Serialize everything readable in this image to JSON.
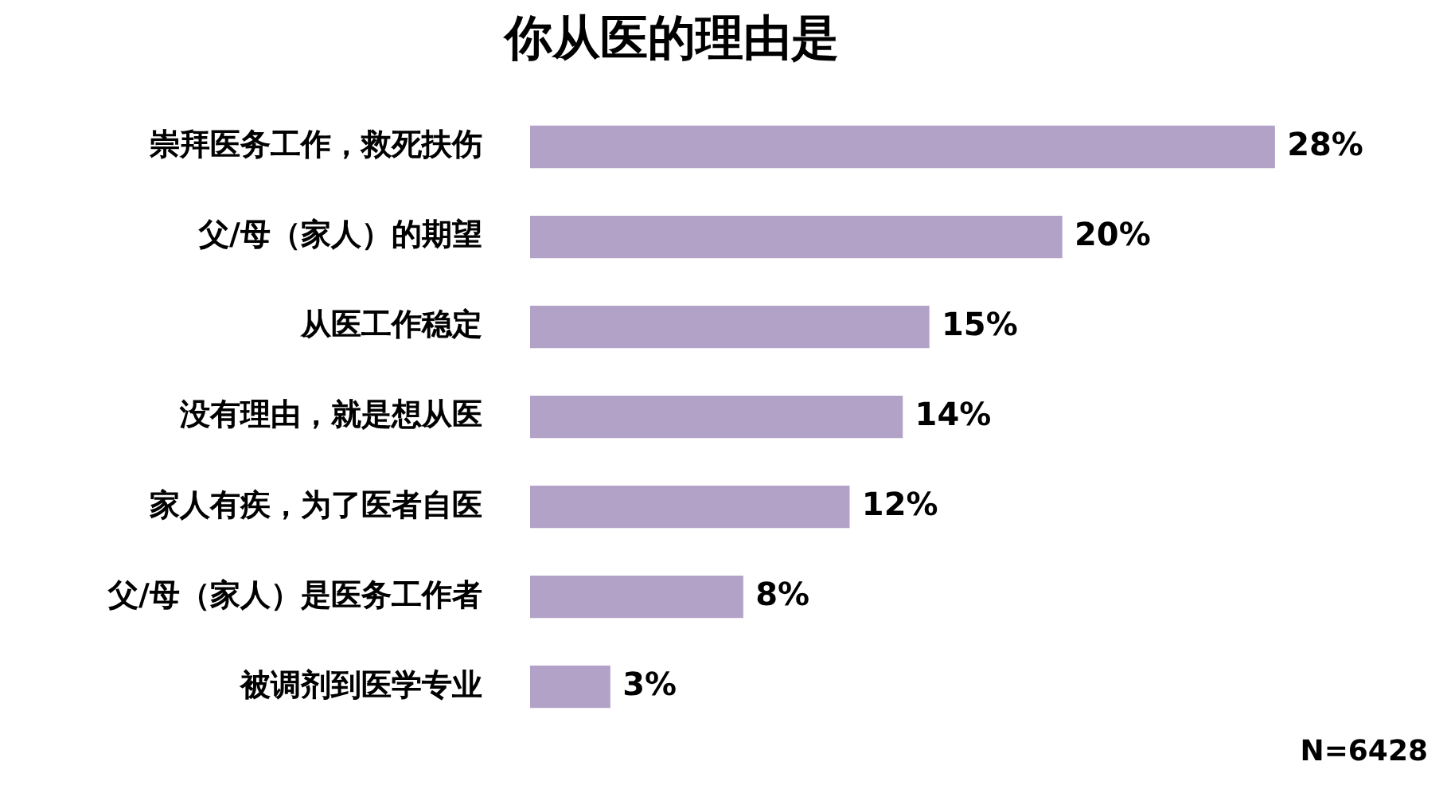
{
  "chart_data": {
    "type": "bar",
    "orientation": "horizontal",
    "title": "你从医的理由是",
    "categories": [
      "崇拜医务工作，救死扶伤",
      "父/母（家人）的期望",
      "从医工作稳定",
      "没有理由，就是想从医",
      "家人有疾，为了医者自医",
      "父/母（家人）是医务工作者",
      "被调剂到医学专业"
    ],
    "values": [
      28,
      20,
      15,
      14,
      12,
      8,
      3
    ],
    "value_labels": [
      "28%",
      "20%",
      "15%",
      "14%",
      "12%",
      "8%",
      "3%"
    ],
    "color": "#b3a2c7",
    "annotations": [
      "N=6428"
    ]
  }
}
